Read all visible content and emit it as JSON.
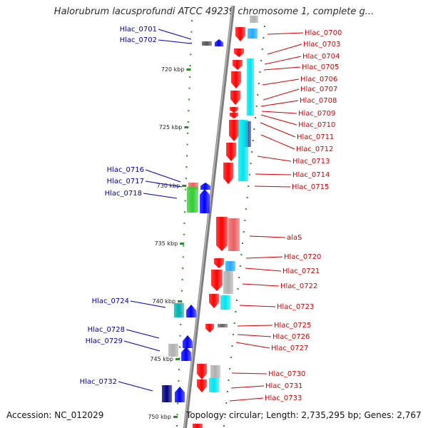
{
  "title": "Halorubrum lacusprofundi ATCC 49239 chromosome 1, complete g...",
  "accession": "Accession: NC_012029",
  "stats": "Topology: circular; Length: 2,735,295 bp; Genes: 2,767",
  "colors": {
    "forward_label": "#d40000",
    "reverse_label": "#0000b0",
    "backbone": "#8a8a8a"
  },
  "scale_ticks": [
    "720 kbp",
    "725 kbp",
    "730 kbp",
    "735 kbp",
    "740 kbp",
    "745 kbp",
    "750 kbp"
  ],
  "reverse_labels": [
    "Hlac_0701",
    "Hlac_0702",
    "Hlac_0716",
    "Hlac_0717",
    "Hlac_0718",
    "Hlac_0724",
    "Hlac_0728",
    "Hlac_0729",
    "Hlac_0732"
  ],
  "forward_labels": [
    "Hlac_0700",
    "Hlac_0703",
    "Hlac_0704",
    "Hlac_0705",
    "Hlac_0706",
    "Hlac_0707",
    "Hlac_0708",
    "Hlac_0709",
    "Hlac_0710",
    "Hlac_0711",
    "Hlac_0712",
    "Hlac_0713",
    "Hlac_0714",
    "Hlac_0715",
    "alaS",
    "Hlac_0720",
    "Hlac_0721",
    "Hlac_0722",
    "Hlac_0723",
    "Hlac_0725",
    "Hlac_0726",
    "Hlac_0727",
    "Hlac_0730",
    "Hlac_0731",
    "Hlac_0733"
  ]
}
